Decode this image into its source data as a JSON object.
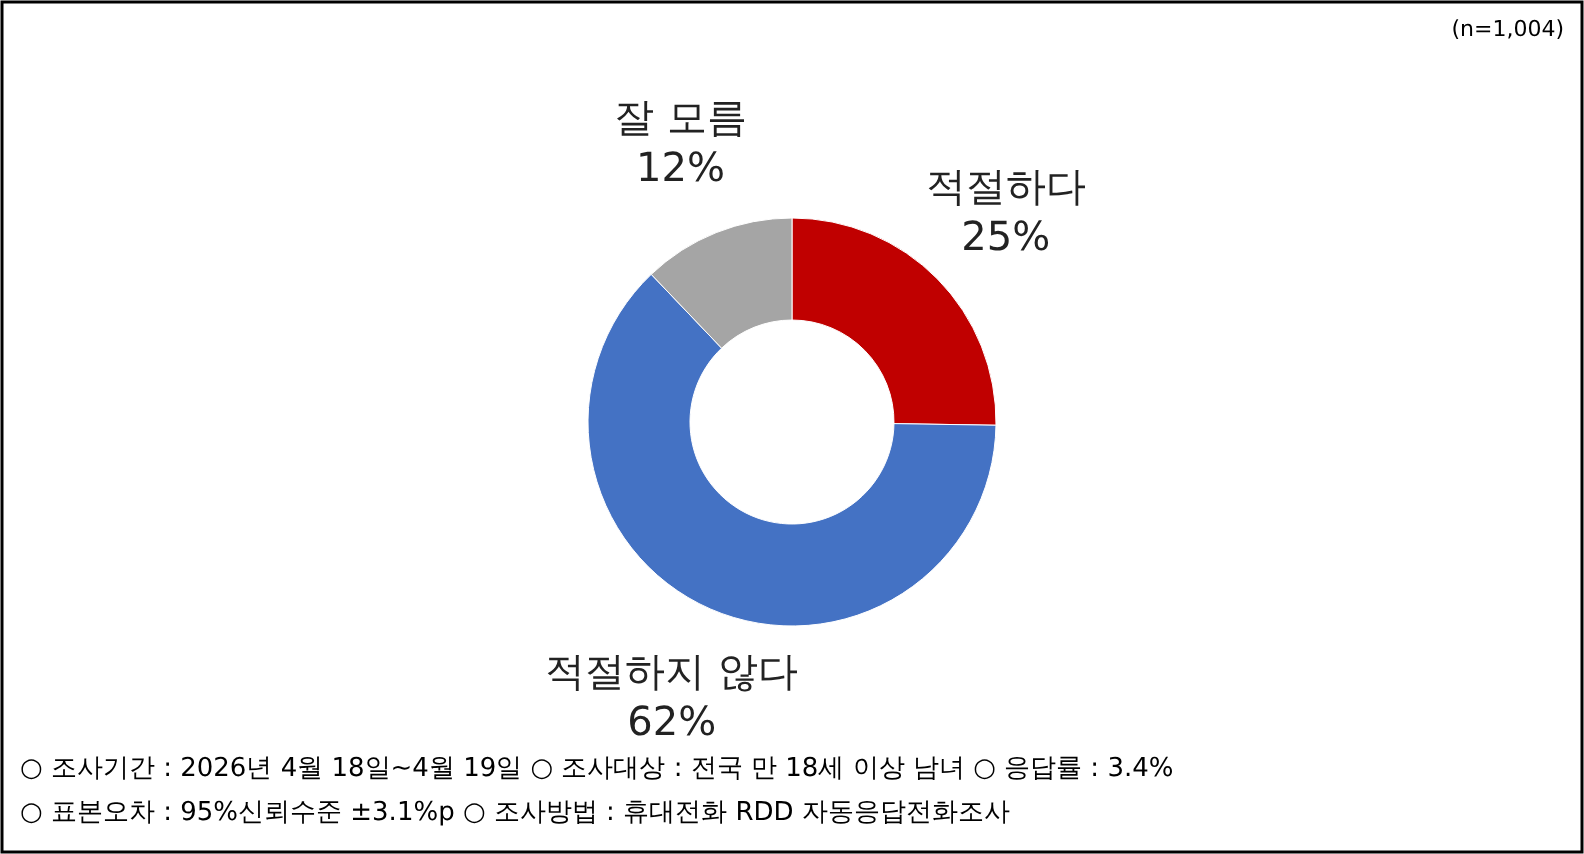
{
  "chart_data": {
    "type": "donut",
    "categories": [
      "적절하다",
      "적절하지 않다",
      "잘 모름"
    ],
    "values": [
      25,
      62,
      12
    ],
    "colors": [
      "#c00000",
      "#4472c4",
      "#a5a5a5"
    ],
    "value_labels": [
      "25%",
      "62%",
      "12%"
    ],
    "annotations": [
      "(n=1,004)",
      "○ 조사기간 : 2026년 4월 18일~4월 19일 ○ 조사대상 : 전국 만 18세 이상 남녀 ○ 응답률 : 3.4%",
      "○ 표본오차 : 95%신뢰수준 ±3.1%p ○ 조사방법 : 휴대전화 RDD 자동응답전화조사"
    ]
  }
}
